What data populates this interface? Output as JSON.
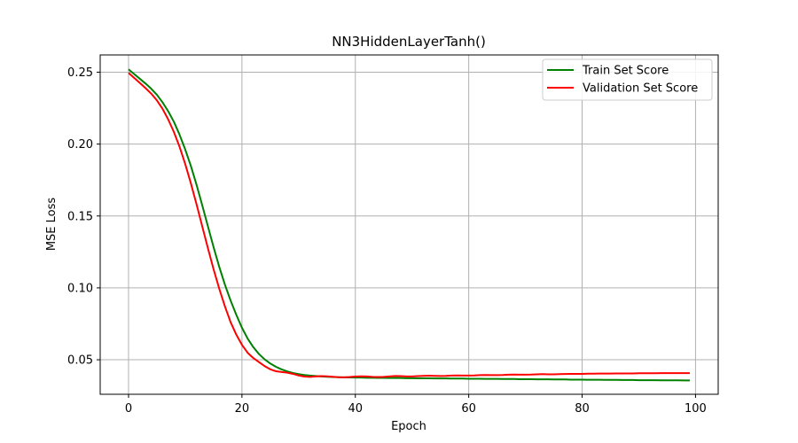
{
  "chart_data": {
    "type": "line",
    "title": "NN3HiddenLayerTanh()",
    "xlabel": "Epoch",
    "ylabel": "MSE Loss",
    "xlim": [
      -5,
      104
    ],
    "ylim": [
      0.026,
      0.262
    ],
    "xticks": [
      0,
      20,
      40,
      60,
      80,
      100
    ],
    "yticks": [
      0.05,
      0.1,
      0.15,
      0.2,
      0.25
    ],
    "ytick_labels": [
      "0.05",
      "0.10",
      "0.15",
      "0.20",
      "0.25"
    ],
    "grid": true,
    "legend_position": "top-right",
    "x": [
      0,
      1,
      2,
      3,
      4,
      5,
      6,
      7,
      8,
      9,
      10,
      11,
      12,
      13,
      14,
      15,
      16,
      17,
      18,
      19,
      20,
      21,
      22,
      23,
      24,
      25,
      26,
      27,
      28,
      29,
      30,
      31,
      32,
      33,
      34,
      35,
      36,
      37,
      38,
      39,
      40,
      41,
      42,
      43,
      44,
      45,
      46,
      47,
      48,
      49,
      50,
      51,
      52,
      53,
      54,
      55,
      56,
      57,
      58,
      59,
      60,
      61,
      62,
      63,
      64,
      65,
      66,
      67,
      68,
      69,
      70,
      71,
      72,
      73,
      74,
      75,
      76,
      77,
      78,
      79,
      80,
      81,
      82,
      83,
      84,
      85,
      86,
      87,
      88,
      89,
      90,
      91,
      92,
      93,
      94,
      95,
      96,
      97,
      98,
      99
    ],
    "series": [
      {
        "name": "Train Set Score",
        "color": "#008000",
        "values": [
          0.252,
          0.2487,
          0.2454,
          0.2421,
          0.2385,
          0.2343,
          0.229,
          0.2228,
          0.2155,
          0.2065,
          0.1962,
          0.1847,
          0.1716,
          0.1574,
          0.1428,
          0.1283,
          0.1146,
          0.1022,
          0.0912,
          0.0813,
          0.0723,
          0.0648,
          0.0588,
          0.054,
          0.0503,
          0.0474,
          0.0451,
          0.0433,
          0.0419,
          0.0408,
          0.04,
          0.0394,
          0.039,
          0.0387,
          0.0384,
          0.0382,
          0.038,
          0.0379,
          0.0378,
          0.0377,
          0.0376,
          0.0376,
          0.0375,
          0.0375,
          0.0374,
          0.0374,
          0.0373,
          0.0373,
          0.0373,
          0.0372,
          0.0372,
          0.0371,
          0.0371,
          0.0371,
          0.037,
          0.037,
          0.037,
          0.0369,
          0.0369,
          0.0369,
          0.0368,
          0.0368,
          0.0368,
          0.0367,
          0.0367,
          0.0367,
          0.0366,
          0.0366,
          0.0366,
          0.0365,
          0.0365,
          0.0365,
          0.0364,
          0.0364,
          0.0364,
          0.0363,
          0.0363,
          0.0363,
          0.0362,
          0.0362,
          0.0362,
          0.0361,
          0.0361,
          0.0361,
          0.036,
          0.036,
          0.036,
          0.0359,
          0.0359,
          0.0359,
          0.0358,
          0.0358,
          0.0358,
          0.0358,
          0.0357,
          0.0357,
          0.0357,
          0.0357,
          0.0356,
          0.0356
        ]
      },
      {
        "name": "Validation Set Score",
        "color": "#ff0000",
        "values": [
          0.2495,
          0.246,
          0.2425,
          0.2389,
          0.2351,
          0.2304,
          0.2245,
          0.2171,
          0.2084,
          0.1981,
          0.1861,
          0.1726,
          0.158,
          0.1428,
          0.1276,
          0.1129,
          0.0994,
          0.0871,
          0.0762,
          0.0675,
          0.0604,
          0.0549,
          0.0512,
          0.0484,
          0.0456,
          0.0434,
          0.042,
          0.0415,
          0.041,
          0.0402,
          0.0391,
          0.0383,
          0.0381,
          0.0384,
          0.0386,
          0.0385,
          0.0382,
          0.0379,
          0.0378,
          0.038,
          0.0383,
          0.0385,
          0.0384,
          0.0381,
          0.038,
          0.0381,
          0.0384,
          0.0387,
          0.0386,
          0.0384,
          0.0384,
          0.0386,
          0.0388,
          0.0389,
          0.0388,
          0.0387,
          0.0388,
          0.039,
          0.0391,
          0.039,
          0.039,
          0.0391,
          0.0393,
          0.0394,
          0.0393,
          0.0393,
          0.0394,
          0.0396,
          0.0397,
          0.0396,
          0.0396,
          0.0397,
          0.0399,
          0.04,
          0.0399,
          0.0399,
          0.04,
          0.0401,
          0.0402,
          0.0402,
          0.0402,
          0.0403,
          0.0403,
          0.0404,
          0.0404,
          0.0404,
          0.0405,
          0.0405,
          0.0405,
          0.0405,
          0.0406,
          0.0406,
          0.0406,
          0.0406,
          0.0407,
          0.0407,
          0.0407,
          0.0407,
          0.0407,
          0.0407
        ]
      }
    ]
  }
}
